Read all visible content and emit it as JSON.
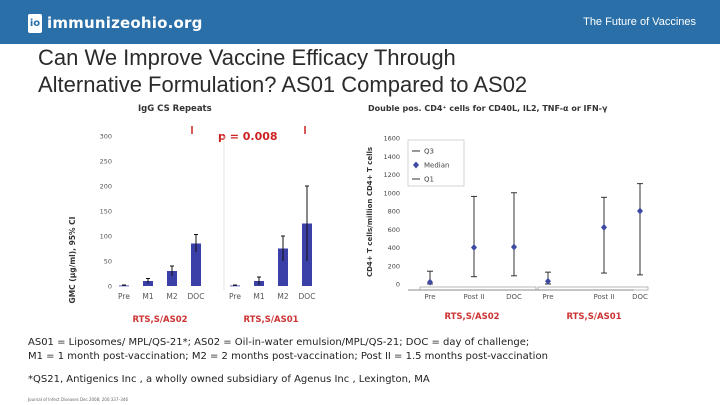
{
  "header": {
    "logo_mark": "io",
    "logo_text": "immunizeohio.org",
    "tagline": "The Future of Vaccines"
  },
  "slide": {
    "title_line1": "Can We Improve Vaccine Efficacy Through",
    "title_line2": "Alternative Formulation? AS01 Compared to AS02"
  },
  "colors": {
    "header_bg": "#2a6fa8",
    "bar": "#3b3fa8",
    "group_label": "#cc3333",
    "marker": "#3d4aa0",
    "p_value": "#cc2222"
  },
  "chart_data": [
    {
      "type": "bar",
      "title": "IgG CS Repeats",
      "ylabel": "GMC (µg/ml), 95% CI",
      "ylim": [
        0,
        300
      ],
      "yticks": [
        0,
        50,
        100,
        150,
        200,
        250,
        300
      ],
      "grid": false,
      "groups": [
        {
          "name": "RTS,S/AS02",
          "categories": [
            "Pre",
            "M1",
            "M2",
            "DOC"
          ],
          "values": [
            1,
            10,
            30,
            85
          ],
          "ci_low": [
            0,
            5,
            20,
            68
          ],
          "ci_high": [
            2,
            15,
            40,
            103
          ]
        },
        {
          "name": "RTS,S/AS01",
          "categories": [
            "Pre",
            "M1",
            "M2",
            "DOC"
          ],
          "values": [
            1,
            10,
            75,
            125
          ],
          "ci_low": [
            0,
            2,
            50,
            50
          ],
          "ci_high": [
            2,
            18,
            100,
            200
          ]
        }
      ],
      "annotation": "p = 0.008"
    },
    {
      "type": "scatter",
      "title": "Double pos. CD4⁺ cells  for CD40L, IL2, TNF-α or IFN-γ",
      "ylabel": "CD4+ T cells/million CD4+ T cells",
      "ylim": [
        0,
        1600
      ],
      "yticks": [
        0,
        200,
        400,
        600,
        800,
        1000,
        1200,
        1400,
        1600
      ],
      "legend": [
        "Q3",
        "Median",
        "Q1"
      ],
      "legend_position": "top-left",
      "groups": [
        {
          "name": "RTS,S/AS02",
          "categories": [
            "Pre",
            "Post II",
            "DOC"
          ],
          "median": [
            20,
            400,
            405
          ],
          "q1": [
            0,
            80,
            90
          ],
          "q3": [
            140,
            960,
            1000
          ]
        },
        {
          "name": "RTS,S/AS01",
          "categories": [
            "Pre",
            "Post II",
            "DOC"
          ],
          "median": [
            30,
            620,
            800
          ],
          "q1": [
            0,
            120,
            100
          ],
          "q3": [
            130,
            950,
            1100
          ]
        }
      ]
    }
  ],
  "notes": {
    "line1": "AS01 = Liposomes/ MPL/QS-21*; AS02 = Oil-in-water emulsion/MPL/QS-21; DOC = day of challenge;",
    "line2": "M1 = 1 month post-vaccination; M2 = 2 months post-vaccination; Post II = 1.5 months post-vaccination",
    "line3": "*QS21, Antigenics Inc , a wholly owned subsidiary of Agenus Inc , Lexington, MA",
    "credit": "Journal of Infect Diseases Dec 2008; 200:337–346"
  }
}
